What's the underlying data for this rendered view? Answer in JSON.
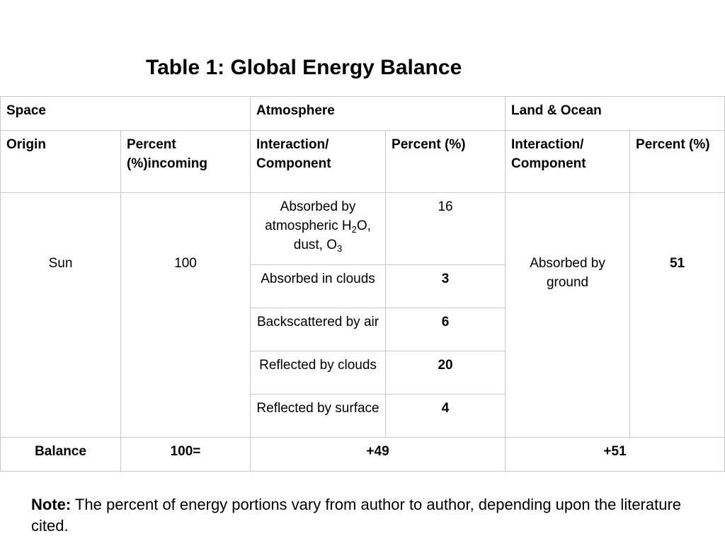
{
  "title": "Table 1: Global Energy Balance",
  "groups": {
    "space": "Space",
    "atmosphere": "Atmosphere",
    "land_ocean": "Land & Ocean"
  },
  "subheaders": {
    "origin": "Origin",
    "percent_incoming": "Percent (%)incoming",
    "atm_interaction": "Interaction/ Component",
    "atm_percent": "Percent (%)",
    "land_interaction": "Interaction/ Component",
    "land_percent": "Percent (%)"
  },
  "origin": {
    "name": "Sun",
    "percent": "100"
  },
  "atmosphere_rows": [
    {
      "component_pre": "Absorbed by atmospheric H",
      "sub1": "2",
      "component_mid": "O, dust, O",
      "sub2": "3",
      "percent": "16"
    },
    {
      "component": "Absorbed in clouds",
      "percent": "3"
    },
    {
      "component": "Backscattered by air",
      "percent": "6"
    },
    {
      "component": "Reflected by clouds",
      "percent": "20"
    },
    {
      "component": "Reflected by surface",
      "percent": "4"
    }
  ],
  "land_ocean": {
    "component": "Absorbed by ground",
    "percent": "51"
  },
  "balance": {
    "label": "Balance",
    "space": "100=",
    "atmosphere": "+49",
    "land_ocean": "+51"
  },
  "note": {
    "label": "Note:",
    "text": " The percent of energy portions vary from author to author, depending upon the literature cited."
  }
}
